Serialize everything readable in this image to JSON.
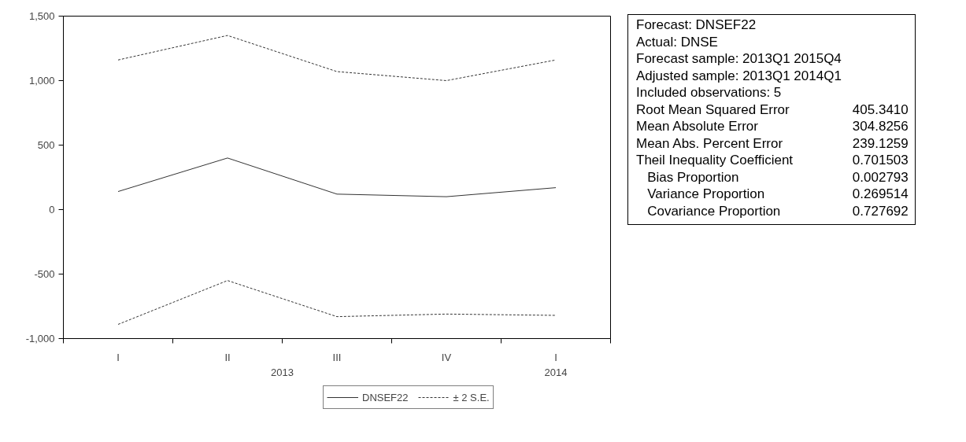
{
  "chart_data": {
    "type": "line",
    "categories": [
      "I",
      "II",
      "III",
      "IV",
      "I"
    ],
    "series": [
      {
        "name": "DNSEF22",
        "color": "#333333",
        "line_style": "solid",
        "values": [
          140,
          400,
          120,
          100,
          170
        ]
      },
      {
        "name": "± 2 S.E.",
        "color": "#333333",
        "line_style": "dashed",
        "values": [
          1160,
          1350,
          1070,
          1000,
          1160
        ]
      },
      {
        "color": "#333333",
        "line_style": "dashed",
        "values": [
          -890,
          -550,
          -830,
          -810,
          -820
        ]
      }
    ],
    "ylim": [
      -1000,
      1500
    ],
    "yticks": [
      {
        "value": -1000,
        "label": "-1,000"
      },
      -500,
      0,
      500,
      {
        "value": 1000,
        "label": "1,000"
      },
      {
        "value": 1500,
        "label": "1,500"
      }
    ],
    "grid": false,
    "legend": "bottom",
    "marker": "none",
    "annotations": [
      "2013",
      "2014",
      "Forecast: DNSEF22",
      "Actual: DNSE",
      "Forecast sample: 2013Q1 2015Q4",
      "Adjusted sample: 2013Q1 2014Q1",
      "Included observations: 5",
      "Root Mean Squared Error\t405.3410",
      "Mean Absolute Error\t304.8256",
      "Mean Abs. Percent Error\t239.1259",
      "Theil Inequality Coefficient\t0.701503",
      "   Bias Proportion\t0.002793",
      "   Variance Proportion\t0.269514",
      "   Covariance Proportion\t0.727692"
    ]
  }
}
